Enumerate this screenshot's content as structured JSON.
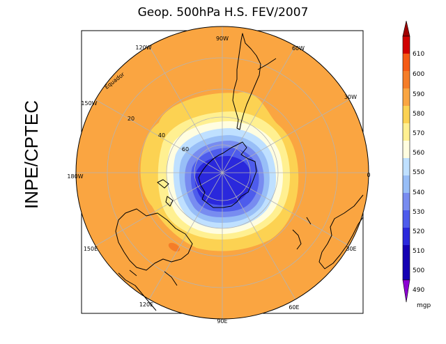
{
  "title": "Geop. 500hPa H.S. FEV/2007",
  "side_label": "INPE/CPTEC",
  "map_labels": {
    "lon_90w": "90W",
    "lon_60w": "60W",
    "lon_30w": "30W",
    "lon_0": "0",
    "lon_30e": "30E",
    "lon_60e": "60E",
    "lon_90e": "90E",
    "lon_120e": "120E",
    "lon_150e": "150E",
    "lon_180w": "180W",
    "lon_150w": "150W",
    "lon_120w": "120W",
    "lat_20": "20",
    "lat_40": "40",
    "lat_60": "60",
    "equator": "Equador"
  },
  "colorbar": {
    "unit": "mgp",
    "levels": [
      "610",
      "600",
      "590",
      "580",
      "570",
      "560",
      "550",
      "540",
      "530",
      "520",
      "510",
      "500",
      "490"
    ],
    "colors": {
      "c610": "#d10000",
      "c600": "#f55a14",
      "c590": "#f57d28",
      "c580": "#faa541",
      "c570": "#fcd252",
      "c560": "#fff091",
      "c550": "#fffde0",
      "c540": "#bfe0ff",
      "c530": "#98bef7",
      "c520": "#788cf0",
      "c510": "#4e5cec",
      "c500": "#2a28dc",
      "c490": "#1400b4",
      "cmax": "#a00000",
      "cmin": "#8c00d2"
    }
  }
}
